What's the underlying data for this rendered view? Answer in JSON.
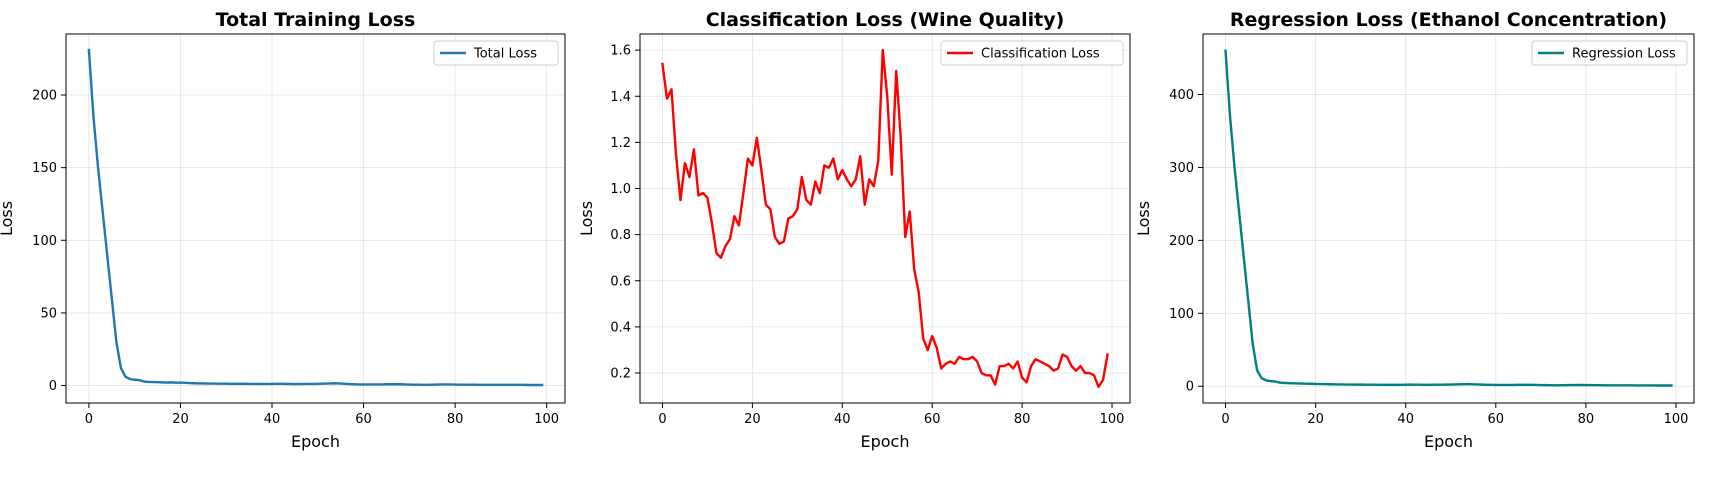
{
  "chart_data": [
    {
      "type": "line",
      "title": "Total Training Loss",
      "xlabel": "Epoch",
      "ylabel": "Loss",
      "xlim": [
        -5,
        104
      ],
      "ylim": [
        -12,
        242
      ],
      "xticks": [
        0,
        20,
        40,
        60,
        80,
        100
      ],
      "yticks": [
        0,
        50,
        100,
        150,
        200
      ],
      "grid": true,
      "legend_position": "top-right",
      "series": [
        {
          "name": "Total Loss",
          "color": "#1f77b4",
          "x_start": 0,
          "values": [
            231,
            185,
            150,
            120,
            90,
            60,
            30,
            12,
            6,
            4.5,
            4,
            3.8,
            2.8,
            2.5,
            2.4,
            2.3,
            2.2,
            2.1,
            2.2,
            2.0,
            2.1,
            1.9,
            1.7,
            1.6,
            1.5,
            1.5,
            1.4,
            1.4,
            1.3,
            1.3,
            1.3,
            1.2,
            1.2,
            1.2,
            1.2,
            1.1,
            1.1,
            1.1,
            1.1,
            1.1,
            1.1,
            1.2,
            1.2,
            1.1,
            1.1,
            1.0,
            1.1,
            1.1,
            1.1,
            1.1,
            1.2,
            1.3,
            1.4,
            1.5,
            1.6,
            1.4,
            1.2,
            1.0,
            0.9,
            0.8,
            0.8,
            0.8,
            0.8,
            0.8,
            0.8,
            0.9,
            0.9,
            0.9,
            0.9,
            0.8,
            0.7,
            0.6,
            0.6,
            0.5,
            0.5,
            0.6,
            0.7,
            0.8,
            0.8,
            0.8,
            0.7,
            0.6,
            0.6,
            0.6,
            0.6,
            0.5,
            0.5,
            0.5,
            0.5,
            0.5,
            0.5,
            0.5,
            0.5,
            0.5,
            0.5,
            0.5,
            0.4,
            0.4,
            0.4,
            0.4
          ]
        }
      ]
    },
    {
      "type": "line",
      "title": "Classification Loss (Wine Quality)",
      "xlabel": "Epoch",
      "ylabel": "Loss",
      "xlim": [
        -5,
        104
      ],
      "ylim": [
        0.07,
        1.67
      ],
      "xticks": [
        0,
        20,
        40,
        60,
        80,
        100
      ],
      "yticks": [
        0.2,
        0.4,
        0.6,
        0.8,
        1.0,
        1.2,
        1.4,
        1.6
      ],
      "ytick_labels": [
        "0.2",
        "0.4",
        "0.6",
        "0.8",
        "1.0",
        "1.2",
        "1.4",
        "1.6"
      ],
      "grid": true,
      "legend_position": "top-right",
      "series": [
        {
          "name": "Classification Loss",
          "color": "#ff0000",
          "x_start": 0,
          "values": [
            1.54,
            1.39,
            1.43,
            1.15,
            0.95,
            1.11,
            1.05,
            1.17,
            0.97,
            0.98,
            0.96,
            0.85,
            0.72,
            0.7,
            0.75,
            0.78,
            0.88,
            0.84,
            0.98,
            1.13,
            1.1,
            1.22,
            1.08,
            0.93,
            0.91,
            0.79,
            0.76,
            0.77,
            0.87,
            0.88,
            0.91,
            1.05,
            0.95,
            0.93,
            1.03,
            0.98,
            1.1,
            1.09,
            1.13,
            1.04,
            1.08,
            1.04,
            1.01,
            1.04,
            1.14,
            0.93,
            1.04,
            1.01,
            1.12,
            1.6,
            1.4,
            1.06,
            1.51,
            1.22,
            0.79,
            0.9,
            0.65,
            0.55,
            0.35,
            0.3,
            0.36,
            0.31,
            0.22,
            0.24,
            0.25,
            0.24,
            0.27,
            0.26,
            0.26,
            0.27,
            0.25,
            0.2,
            0.19,
            0.19,
            0.15,
            0.23,
            0.23,
            0.24,
            0.22,
            0.25,
            0.18,
            0.16,
            0.23,
            0.26,
            0.25,
            0.24,
            0.23,
            0.21,
            0.22,
            0.28,
            0.27,
            0.23,
            0.21,
            0.23,
            0.2,
            0.2,
            0.19,
            0.14,
            0.17,
            0.28
          ]
        }
      ]
    },
    {
      "type": "line",
      "title": "Regression Loss (Ethanol Concentration)",
      "xlabel": "Epoch",
      "ylabel": "Loss",
      "xlim": [
        -5,
        104
      ],
      "ylim": [
        -23,
        483
      ],
      "xticks": [
        0,
        20,
        40,
        60,
        80,
        100
      ],
      "yticks": [
        0,
        100,
        200,
        300,
        400
      ],
      "grid": true,
      "legend_position": "top-right",
      "series": [
        {
          "name": "Regression Loss",
          "color": "#008080",
          "x_start": 0,
          "values": [
            460,
            370,
            300,
            240,
            180,
            120,
            60,
            22,
            11,
            8,
            7,
            6.5,
            5,
            4.5,
            4.2,
            4,
            3.8,
            3.6,
            3.5,
            3.4,
            3.2,
            3,
            2.9,
            2.7,
            2.6,
            2.5,
            2.4,
            2.3,
            2.3,
            2.2,
            2.2,
            2.1,
            2.1,
            2.1,
            2,
            2,
            2,
            2,
            2,
            2,
            2.1,
            2.2,
            2.1,
            2.1,
            2,
            2,
            2.1,
            2.1,
            2.1,
            2.2,
            2.3,
            2.5,
            2.6,
            2.8,
            3,
            2.6,
            2.4,
            2.2,
            2,
            1.9,
            1.8,
            1.8,
            1.8,
            1.8,
            1.8,
            1.9,
            1.9,
            1.9,
            1.9,
            1.8,
            1.6,
            1.5,
            1.4,
            1.3,
            1.3,
            1.4,
            1.5,
            1.6,
            1.7,
            1.7,
            1.6,
            1.5,
            1.4,
            1.4,
            1.3,
            1.3,
            1.2,
            1.2,
            1.2,
            1.2,
            1.2,
            1.1,
            1.1,
            1.1,
            1.1,
            1.1,
            1,
            1,
            1,
            1
          ]
        }
      ]
    }
  ]
}
